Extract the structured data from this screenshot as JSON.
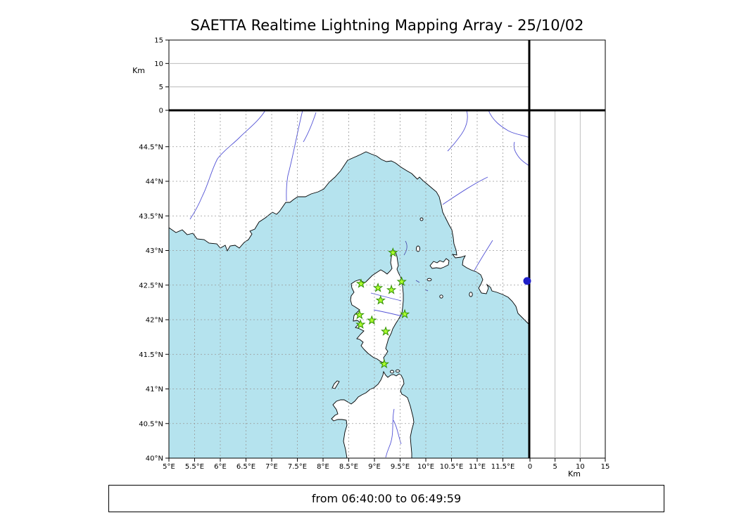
{
  "title": "SAETTA Realtime Lightning Mapping Array - 25/10/02",
  "status_bar": {
    "text": "from 06:40:00 to 06:49:59"
  },
  "axes": {
    "km_label_left": "Km",
    "km_label_bottom": "Km",
    "lon_ticks": [
      {
        "value": 5,
        "label": "5°E"
      },
      {
        "value": 5.5,
        "label": "5.5°E"
      },
      {
        "value": 6,
        "label": "6°E"
      },
      {
        "value": 6.5,
        "label": "6.5°E"
      },
      {
        "value": 7,
        "label": "7°E"
      },
      {
        "value": 7.5,
        "label": "7.5°E"
      },
      {
        "value": 8,
        "label": "8°E"
      },
      {
        "value": 8.5,
        "label": "8.5°E"
      },
      {
        "value": 9,
        "label": "9°E"
      },
      {
        "value": 9.5,
        "label": "9.5°E"
      },
      {
        "value": 10,
        "label": "10°E"
      },
      {
        "value": 10.5,
        "label": "10.5°E"
      },
      {
        "value": 11,
        "label": "11°E"
      },
      {
        "value": 11.5,
        "label": "11.5°E"
      }
    ],
    "lat_ticks": [
      {
        "value": 40,
        "label": "40°N"
      },
      {
        "value": 40.5,
        "label": "40.5°N"
      },
      {
        "value": 41,
        "label": "41°N"
      },
      {
        "value": 41.5,
        "label": "41.5°N"
      },
      {
        "value": 42,
        "label": "42°N"
      },
      {
        "value": 42.5,
        "label": "42.5°N"
      },
      {
        "value": 43,
        "label": "43°N"
      },
      {
        "value": 43.5,
        "label": "43.5°N"
      },
      {
        "value": 44,
        "label": "44°N"
      },
      {
        "value": 44.5,
        "label": "44.5°N"
      }
    ],
    "alt_ticks": [
      {
        "value": 0,
        "label": "0"
      },
      {
        "value": 5,
        "label": "5"
      },
      {
        "value": 10,
        "label": "10"
      },
      {
        "value": 15,
        "label": "15"
      }
    ],
    "alt_grid": [
      5,
      10
    ]
  },
  "chart_data": {
    "type": "scatter",
    "title": "SAETTA Realtime Lightning Mapping Array - 25/10/02",
    "time_range": "from 06:40:00 to 06:49:59",
    "map_extent": {
      "lon": [
        5,
        12.01
      ],
      "lat": [
        40,
        45.03
      ]
    },
    "altitude_axis_km": {
      "range": [
        0,
        15
      ],
      "ticks": [
        0,
        5,
        10,
        15
      ]
    },
    "stations_lon_lat": [
      [
        9.36,
        42.97
      ],
      [
        8.74,
        42.52
      ],
      [
        9.07,
        42.46
      ],
      [
        9.33,
        42.43
      ],
      [
        9.53,
        42.55
      ],
      [
        9.12,
        42.28
      ],
      [
        8.71,
        42.07
      ],
      [
        8.95,
        41.99
      ],
      [
        8.73,
        41.93
      ],
      [
        9.59,
        42.08
      ],
      [
        9.22,
        41.83
      ],
      [
        9.19,
        41.36
      ]
    ],
    "detections": [
      {
        "lat": 42.56,
        "alt_km": 0
      }
    ]
  },
  "colors": {
    "sea": "#b5e3ee",
    "land": "#ffffff",
    "coast": "#000000",
    "river": "#5353d6",
    "grid": "#999999",
    "station_fill": "#adff2f",
    "station_stroke": "#2f8f00",
    "detection": "#1f1fc8"
  }
}
